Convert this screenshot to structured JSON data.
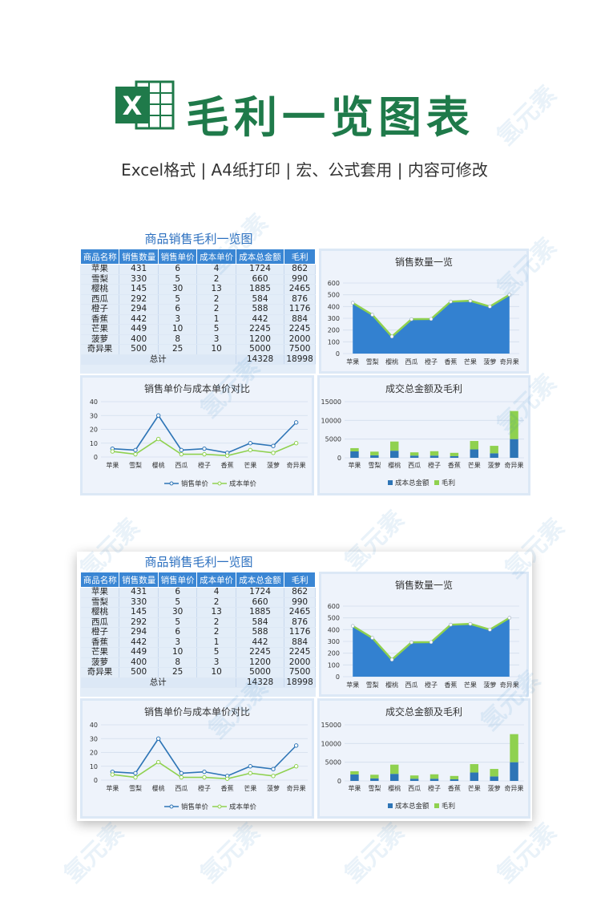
{
  "header": {
    "title": "毛利一览图表",
    "subtitle": "Excel格式 | A4纸打印 | 宏、公式套用 | 内容可修改",
    "logo_letter": "X"
  },
  "sheet": {
    "title": "商品销售毛利一览图",
    "columns": [
      "商品名称",
      "销售数量",
      "销售单价",
      "成本单价",
      "成本总金额",
      "毛利"
    ],
    "rows": [
      [
        "苹果",
        "431",
        "6",
        "4",
        "1724",
        "862"
      ],
      [
        "雪梨",
        "330",
        "5",
        "2",
        "660",
        "990"
      ],
      [
        "樱桃",
        "145",
        "30",
        "13",
        "1885",
        "2465"
      ],
      [
        "西瓜",
        "292",
        "5",
        "2",
        "584",
        "876"
      ],
      [
        "橙子",
        "294",
        "6",
        "2",
        "588",
        "1176"
      ],
      [
        "香蕉",
        "442",
        "3",
        "1",
        "442",
        "884"
      ],
      [
        "芒果",
        "449",
        "10",
        "5",
        "2245",
        "2245"
      ],
      [
        "菠萝",
        "400",
        "8",
        "3",
        "1200",
        "2000"
      ],
      [
        "奇异果",
        "500",
        "25",
        "10",
        "5000",
        "7500"
      ]
    ],
    "total_label": "总计",
    "total_cost": "14328",
    "total_profit": "18998"
  },
  "chart_data": [
    {
      "type": "area",
      "title": "销售数量一览",
      "categories": [
        "苹果",
        "雪梨",
        "樱桃",
        "西瓜",
        "橙子",
        "香蕉",
        "芒果",
        "菠萝",
        "奇异果"
      ],
      "values": [
        431,
        330,
        145,
        292,
        294,
        442,
        449,
        400,
        500
      ],
      "ylim": [
        0,
        600
      ],
      "yticks": [
        0,
        100,
        200,
        300,
        400,
        500,
        600
      ],
      "colors": {
        "fill": "#3381d0",
        "line": "#8fd14f"
      }
    },
    {
      "type": "line",
      "title": "销售单价与成本单价对比",
      "categories": [
        "苹果",
        "雪梨",
        "樱桃",
        "西瓜",
        "橙子",
        "香蕉",
        "芒果",
        "菠萝",
        "奇异果"
      ],
      "series": [
        {
          "name": "销售单价",
          "values": [
            6,
            5,
            30,
            5,
            6,
            3,
            10,
            8,
            25
          ],
          "color": "#2e75b6"
        },
        {
          "name": "成本单价",
          "values": [
            4,
            2,
            13,
            2,
            2,
            1,
            5,
            3,
            10
          ],
          "color": "#8fd14f"
        }
      ],
      "ylim": [
        0,
        40
      ],
      "yticks": [
        0,
        10,
        20,
        30,
        40
      ],
      "legend": "bottom"
    },
    {
      "type": "bar",
      "stacked": true,
      "title": "成交总金额及毛利",
      "categories": [
        "苹果",
        "雪梨",
        "樱桃",
        "西瓜",
        "橙子",
        "香蕉",
        "芒果",
        "菠萝",
        "奇异果"
      ],
      "series": [
        {
          "name": "成本总金额",
          "values": [
            1724,
            660,
            1885,
            584,
            588,
            442,
            2245,
            1200,
            5000
          ],
          "color": "#2e75b6"
        },
        {
          "name": "毛利",
          "values": [
            862,
            990,
            2465,
            876,
            1176,
            884,
            2245,
            2000,
            7500
          ],
          "color": "#8fd14f"
        }
      ],
      "ylim": [
        0,
        15000
      ],
      "yticks": [
        0,
        5000,
        10000,
        15000
      ],
      "legend": "bottom"
    }
  ],
  "watermark_text": "氢元素",
  "colors": {
    "accent": "#3a86d4",
    "title_green": "#1f7a4a",
    "panel": "#dce8f6"
  }
}
